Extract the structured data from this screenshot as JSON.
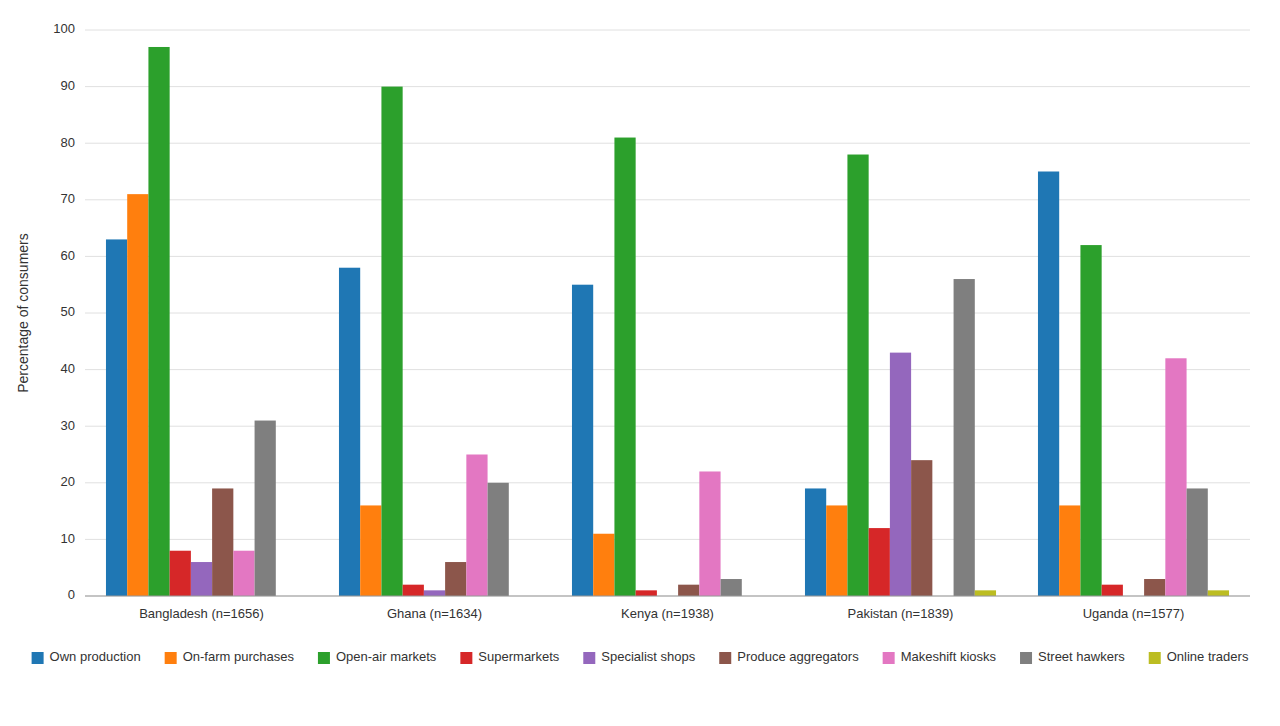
{
  "chart_data": {
    "type": "bar",
    "categories": [
      "Bangladesh (n=1656)",
      "Ghana (n=1634)",
      "Kenya (n=1938)",
      "Pakistan (n=1839)",
      "Uganda (n=1577)"
    ],
    "series": [
      {
        "name": "Own production",
        "values": [
          63,
          58,
          55,
          19,
          75
        ]
      },
      {
        "name": "On-farm purchases",
        "values": [
          71,
          16,
          11,
          16,
          16
        ]
      },
      {
        "name": "Open-air markets",
        "values": [
          97,
          90,
          81,
          78,
          62
        ]
      },
      {
        "name": "Supermarkets",
        "values": [
          8,
          2,
          1,
          12,
          2
        ]
      },
      {
        "name": "Specialist shops",
        "values": [
          6,
          1,
          0,
          43,
          0
        ]
      },
      {
        "name": "Produce aggregators",
        "values": [
          19,
          6,
          2,
          24,
          3
        ]
      },
      {
        "name": "Makeshift kiosks",
        "values": [
          8,
          25,
          22,
          0,
          42
        ]
      },
      {
        "name": "Street hawkers",
        "values": [
          31,
          20,
          3,
          56,
          19
        ]
      },
      {
        "name": "Online traders",
        "values": [
          0,
          0,
          0,
          1,
          1
        ]
      }
    ],
    "y_label": "Percentage of consumers",
    "ylim": [
      0,
      100
    ],
    "yticks": [
      0,
      10,
      20,
      30,
      40,
      50,
      60,
      70,
      80,
      90,
      100
    ],
    "grid": true,
    "legend": "bottom"
  }
}
